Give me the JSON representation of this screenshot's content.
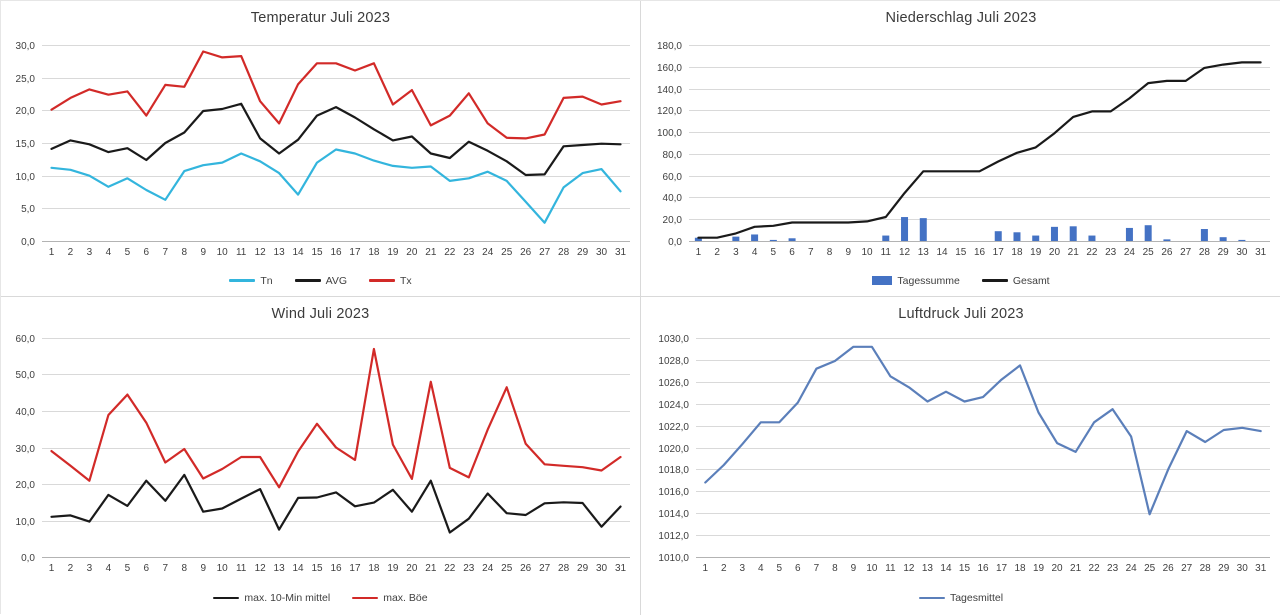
{
  "chart_data": [
    {
      "type": "line",
      "title": "Temperatur Juli 2023",
      "xlabel": "",
      "ylabel": "",
      "ylim": [
        0,
        30
      ],
      "ytick_step": 5,
      "ytick_format": "german-comma-1-decimal",
      "grid": true,
      "legend_position": "bottom",
      "categories": [
        1,
        2,
        3,
        4,
        5,
        6,
        7,
        8,
        9,
        10,
        11,
        12,
        13,
        14,
        15,
        16,
        17,
        18,
        19,
        20,
        21,
        22,
        23,
        24,
        25,
        26,
        27,
        28,
        29,
        30,
        31
      ],
      "series": [
        {
          "name": "Tn",
          "type": "line",
          "color": "#33b5dd",
          "values": [
            11.2,
            10.9,
            10.0,
            8.3,
            9.6,
            7.8,
            6.3,
            10.7,
            11.6,
            12.0,
            13.4,
            12.2,
            10.4,
            7.1,
            12.0,
            14.0,
            13.4,
            12.3,
            11.5,
            11.2,
            11.4,
            9.2,
            9.6,
            10.6,
            9.2,
            6.0,
            2.8,
            8.2,
            10.4,
            11.0,
            7.6
          ]
        },
        {
          "name": "AVG",
          "type": "line",
          "color": "#1a1a1a",
          "values": [
            14.1,
            15.4,
            14.8,
            13.6,
            14.2,
            12.4,
            15.0,
            16.6,
            19.9,
            20.2,
            21.0,
            15.7,
            13.4,
            15.5,
            19.2,
            20.5,
            18.9,
            17.1,
            15.4,
            16.0,
            13.4,
            12.7,
            15.2,
            13.8,
            12.2,
            10.1,
            10.2,
            14.5,
            14.7,
            14.9,
            14.8
          ]
        },
        {
          "name": "Tx",
          "type": "line",
          "color": "#d22a28",
          "values": [
            20.1,
            21.9,
            23.2,
            22.4,
            22.9,
            19.2,
            23.9,
            23.6,
            29.0,
            28.1,
            28.3,
            21.4,
            18.0,
            24.0,
            27.2,
            27.2,
            26.1,
            27.2,
            20.9,
            23.1,
            17.7,
            19.2,
            22.6,
            18.0,
            15.8,
            15.7,
            16.3,
            21.9,
            22.1,
            20.9,
            21.4
          ]
        }
      ]
    },
    {
      "type": "combo-bar-line",
      "title": "Niederschlag Juli 2023",
      "xlabel": "",
      "ylabel": "",
      "ylim": [
        0,
        180
      ],
      "ytick_step": 20,
      "ytick_format": "german-comma-1-decimal",
      "grid": true,
      "legend_position": "bottom",
      "categories": [
        1,
        2,
        3,
        4,
        5,
        6,
        7,
        8,
        9,
        10,
        11,
        12,
        13,
        14,
        15,
        16,
        17,
        18,
        19,
        20,
        21,
        22,
        23,
        24,
        25,
        26,
        27,
        28,
        29,
        30,
        31
      ],
      "series": [
        {
          "name": "Tagessumme",
          "type": "bar",
          "color": "#4472c4",
          "values": [
            3,
            0,
            4,
            6,
            1,
            2.5,
            0,
            0,
            0,
            0,
            5,
            22,
            21,
            0,
            0,
            0,
            9,
            8,
            5,
            13,
            13.5,
            5,
            0,
            12,
            14.5,
            1.5,
            0,
            11,
            3.5,
            1,
            0
          ]
        },
        {
          "name": "Gesamt",
          "type": "line",
          "color": "#1a1a1a",
          "values": [
            3,
            3,
            7,
            13,
            14,
            17,
            17,
            17,
            17,
            18,
            22,
            44,
            64,
            64,
            64,
            64,
            73,
            81,
            86,
            99,
            114,
            119,
            119,
            131,
            145,
            147,
            147,
            159,
            162,
            164,
            164
          ]
        }
      ]
    },
    {
      "type": "line",
      "title": "Wind Juli 2023",
      "xlabel": "",
      "ylabel": "",
      "ylim": [
        0,
        60
      ],
      "ytick_step": 10,
      "ytick_format": "german-comma-1-decimal",
      "grid": true,
      "legend_position": "bottom",
      "categories": [
        1,
        2,
        3,
        4,
        5,
        6,
        7,
        8,
        9,
        10,
        11,
        12,
        13,
        14,
        15,
        16,
        17,
        18,
        19,
        20,
        21,
        22,
        23,
        24,
        25,
        26,
        27,
        28,
        29,
        30,
        31
      ],
      "series": [
        {
          "name": "max. 10-Min mittel",
          "type": "line",
          "color": "#1a1a1a",
          "values": [
            11.0,
            11.4,
            9.7,
            17.0,
            14.0,
            20.9,
            15.4,
            22.5,
            12.4,
            13.3,
            16.0,
            18.6,
            7.5,
            16.2,
            16.3,
            17.7,
            13.9,
            14.9,
            18.4,
            12.4,
            20.9,
            6.7,
            10.5,
            17.4,
            12.0,
            11.5,
            14.7,
            15.0,
            14.8,
            8.3,
            13.8
          ]
        },
        {
          "name": "max. Böe",
          "type": "line",
          "color": "#d22a28",
          "values": [
            29.0,
            25.0,
            20.9,
            38.9,
            44.5,
            36.8,
            25.9,
            29.6,
            21.5,
            24.1,
            27.4,
            27.4,
            19.1,
            28.9,
            36.5,
            30.0,
            26.6,
            57.0,
            30.8,
            21.4,
            48.0,
            24.4,
            21.8,
            34.9,
            46.5,
            31.0,
            25.4,
            25.0,
            24.6,
            23.7,
            27.4
          ]
        }
      ]
    },
    {
      "type": "line",
      "title": "Luftdruck Juli 2023",
      "xlabel": "",
      "ylabel": "",
      "ylim": [
        1010,
        1030
      ],
      "ytick_step": 2,
      "ytick_format": "german-comma-1-decimal",
      "grid": true,
      "legend_position": "bottom",
      "categories": [
        1,
        2,
        3,
        4,
        5,
        6,
        7,
        8,
        9,
        10,
        11,
        12,
        13,
        14,
        15,
        16,
        17,
        18,
        19,
        20,
        21,
        22,
        23,
        24,
        25,
        26,
        27,
        28,
        29,
        30,
        31
      ],
      "series": [
        {
          "name": "Tagesmittel",
          "type": "line",
          "color": "#5b7fba",
          "values": [
            1016.8,
            1018.4,
            1020.3,
            1022.3,
            1022.3,
            1024.1,
            1027.2,
            1027.9,
            1029.2,
            1029.2,
            1026.5,
            1025.5,
            1024.2,
            1025.1,
            1024.2,
            1024.6,
            1026.2,
            1027.5,
            1023.2,
            1020.4,
            1019.6,
            1022.3,
            1023.5,
            1021.0,
            1013.9,
            1018.0,
            1021.5,
            1020.5,
            1021.6,
            1021.8,
            1021.5
          ]
        }
      ]
    }
  ],
  "style": {
    "gridline_color": "#d9d9d9",
    "axis_line_color": "#b3b3b3",
    "tick_label_color": "#404040",
    "title_color": "#3b3b3b"
  }
}
